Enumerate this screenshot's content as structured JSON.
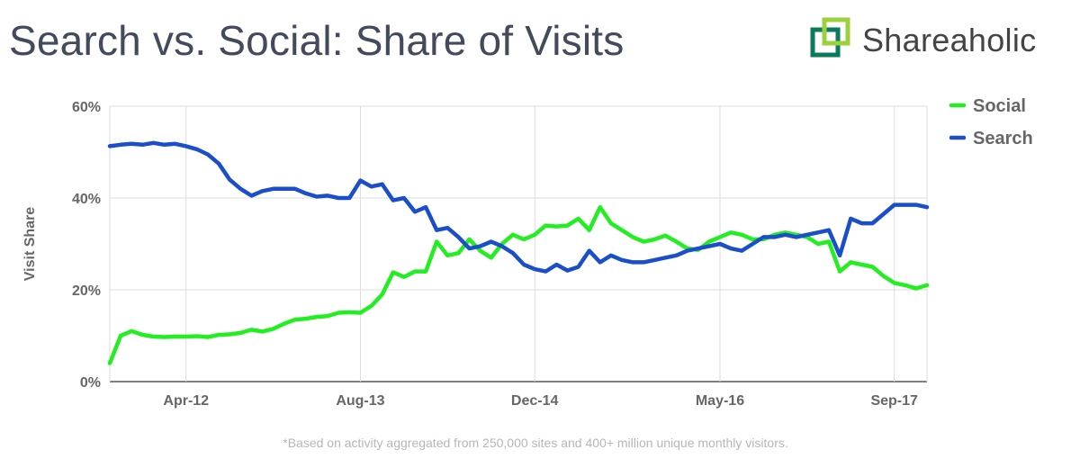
{
  "header": {
    "title": "Search vs. Social: Share of Visits",
    "logo": {
      "icon": "shareaholic-logo-icon",
      "text": "Shareaholic",
      "colors": [
        "#9bd23c",
        "#1f9a6b",
        "#0b7a5a"
      ]
    }
  },
  "footnote": "*Based on activity aggregated from 250,000 sites and 400+ million unique monthly visitors.",
  "chart_data": {
    "type": "line",
    "title": "Search vs. Social: Share of Visits",
    "xlabel": "",
    "ylabel": "Visit Share",
    "xlim": [
      "2011-09",
      "2017-12"
    ],
    "ylim": [
      0,
      60
    ],
    "yticks": [
      0,
      20,
      40,
      60
    ],
    "ytick_labels": [
      "0%",
      "20%",
      "40%",
      "60%"
    ],
    "xticks": [
      "2012-04",
      "2013-08",
      "2014-12",
      "2016-05",
      "2017-09"
    ],
    "xtick_labels": [
      "Apr-12",
      "Aug-13",
      "Dec-14",
      "May-16",
      "Sep-17"
    ],
    "grid": true,
    "legend_position": "right",
    "series": [
      {
        "name": "Social",
        "color": "#22ee22",
        "points": [
          [
            "2011-09",
            4
          ],
          [
            "2011-10",
            10
          ],
          [
            "2011-11",
            11
          ],
          [
            "2011-12",
            10.2
          ],
          [
            "2012-01",
            9.8
          ],
          [
            "2012-02",
            9.7
          ],
          [
            "2012-03",
            9.8
          ],
          [
            "2012-04",
            9.8
          ],
          [
            "2012-05",
            9.9
          ],
          [
            "2012-06",
            9.7
          ],
          [
            "2012-07",
            10.2
          ],
          [
            "2012-08",
            10.3
          ],
          [
            "2012-09",
            10.6
          ],
          [
            "2012-10",
            11.3
          ],
          [
            "2012-11",
            10.9
          ],
          [
            "2012-12",
            11.5
          ],
          [
            "2013-01",
            12.6
          ],
          [
            "2013-02",
            13.5
          ],
          [
            "2013-03",
            13.7
          ],
          [
            "2013-04",
            14.1
          ],
          [
            "2013-05",
            14.3
          ],
          [
            "2013-06",
            15.0
          ],
          [
            "2013-07",
            15.1
          ],
          [
            "2013-08",
            15.0
          ],
          [
            "2013-09",
            16.5
          ],
          [
            "2013-10",
            19.0
          ],
          [
            "2013-11",
            23.8
          ],
          [
            "2013-12",
            22.8
          ],
          [
            "2014-01",
            24.0
          ],
          [
            "2014-02",
            24.0
          ],
          [
            "2014-03",
            30.5
          ],
          [
            "2014-04",
            27.5
          ],
          [
            "2014-05",
            28.0
          ],
          [
            "2014-06",
            31.0
          ],
          [
            "2014-07",
            28.5
          ],
          [
            "2014-08",
            27.0
          ],
          [
            "2014-09",
            30.0
          ],
          [
            "2014-10",
            32.0
          ],
          [
            "2014-11",
            31.0
          ],
          [
            "2014-12",
            32.0
          ],
          [
            "2015-01",
            34.0
          ],
          [
            "2015-02",
            33.8
          ],
          [
            "2015-03",
            34.0
          ],
          [
            "2015-04",
            35.5
          ],
          [
            "2015-05",
            33.0
          ],
          [
            "2015-06",
            38.0
          ],
          [
            "2015-07",
            34.5
          ],
          [
            "2015-08",
            33.0
          ],
          [
            "2015-09",
            31.5
          ],
          [
            "2015-10",
            30.5
          ],
          [
            "2015-11",
            31.0
          ],
          [
            "2015-12",
            31.8
          ],
          [
            "2016-01",
            30.5
          ],
          [
            "2016-02",
            29.0
          ],
          [
            "2016-03",
            28.7
          ],
          [
            "2016-04",
            30.5
          ],
          [
            "2016-05",
            31.5
          ],
          [
            "2016-06",
            32.5
          ],
          [
            "2016-07",
            32.0
          ],
          [
            "2016-08",
            31.0
          ],
          [
            "2016-09",
            31.0
          ],
          [
            "2016-10",
            32.0
          ],
          [
            "2016-11",
            32.5
          ],
          [
            "2016-12",
            32.0
          ],
          [
            "2017-01",
            31.5
          ],
          [
            "2017-02",
            30.0
          ],
          [
            "2017-03",
            30.5
          ],
          [
            "2017-04",
            24.0
          ],
          [
            "2017-05",
            26.0
          ],
          [
            "2017-06",
            25.5
          ],
          [
            "2017-07",
            25.0
          ],
          [
            "2017-08",
            23.0
          ],
          [
            "2017-09",
            21.5
          ],
          [
            "2017-10",
            21.0
          ],
          [
            "2017-11",
            20.3
          ],
          [
            "2017-12",
            21.0
          ]
        ]
      },
      {
        "name": "Search",
        "color": "#1a4fc9",
        "points": [
          [
            "2011-09",
            51.3
          ],
          [
            "2011-10",
            51.6
          ],
          [
            "2011-11",
            51.8
          ],
          [
            "2011-12",
            51.6
          ],
          [
            "2012-01",
            52.0
          ],
          [
            "2012-02",
            51.6
          ],
          [
            "2012-03",
            51.8
          ],
          [
            "2012-04",
            51.3
          ],
          [
            "2012-05",
            50.6
          ],
          [
            "2012-06",
            49.5
          ],
          [
            "2012-07",
            47.5
          ],
          [
            "2012-08",
            44.0
          ],
          [
            "2012-09",
            42.0
          ],
          [
            "2012-10",
            40.5
          ],
          [
            "2012-11",
            41.5
          ],
          [
            "2012-12",
            42.0
          ],
          [
            "2013-01",
            42.0
          ],
          [
            "2013-02",
            42.0
          ],
          [
            "2013-03",
            41.0
          ],
          [
            "2013-04",
            40.3
          ],
          [
            "2013-05",
            40.5
          ],
          [
            "2013-06",
            40.0
          ],
          [
            "2013-07",
            40.0
          ],
          [
            "2013-08",
            43.8
          ],
          [
            "2013-09",
            42.5
          ],
          [
            "2013-10",
            43.0
          ],
          [
            "2013-11",
            39.5
          ],
          [
            "2013-12",
            40.0
          ],
          [
            "2014-01",
            37.0
          ],
          [
            "2014-02",
            38.0
          ],
          [
            "2014-03",
            33.0
          ],
          [
            "2014-04",
            33.5
          ],
          [
            "2014-05",
            31.5
          ],
          [
            "2014-06",
            29.0
          ],
          [
            "2014-07",
            29.5
          ],
          [
            "2014-08",
            30.5
          ],
          [
            "2014-09",
            29.5
          ],
          [
            "2014-10",
            28.0
          ],
          [
            "2014-11",
            25.5
          ],
          [
            "2014-12",
            24.5
          ],
          [
            "2015-01",
            24.0
          ],
          [
            "2015-02",
            25.5
          ],
          [
            "2015-03",
            24.2
          ],
          [
            "2015-04",
            25.0
          ],
          [
            "2015-05",
            28.5
          ],
          [
            "2015-06",
            26.0
          ],
          [
            "2015-07",
            27.5
          ],
          [
            "2015-08",
            26.5
          ],
          [
            "2015-09",
            26.0
          ],
          [
            "2015-10",
            26.0
          ],
          [
            "2015-11",
            26.5
          ],
          [
            "2015-12",
            27.0
          ],
          [
            "2016-01",
            27.5
          ],
          [
            "2016-02",
            28.5
          ],
          [
            "2016-03",
            29.0
          ],
          [
            "2016-04",
            29.5
          ],
          [
            "2016-05",
            30.0
          ],
          [
            "2016-06",
            29.0
          ],
          [
            "2016-07",
            28.5
          ],
          [
            "2016-08",
            30.0
          ],
          [
            "2016-09",
            31.5
          ],
          [
            "2016-10",
            31.5
          ],
          [
            "2016-11",
            32.0
          ],
          [
            "2016-12",
            31.5
          ],
          [
            "2017-01",
            32.0
          ],
          [
            "2017-02",
            32.5
          ],
          [
            "2017-03",
            33.0
          ],
          [
            "2017-04",
            27.5
          ],
          [
            "2017-05",
            35.5
          ],
          [
            "2017-06",
            34.5
          ],
          [
            "2017-07",
            34.5
          ],
          [
            "2017-08",
            36.5
          ],
          [
            "2017-09",
            38.5
          ],
          [
            "2017-10",
            38.5
          ],
          [
            "2017-11",
            38.5
          ],
          [
            "2017-12",
            38.0
          ]
        ]
      }
    ]
  }
}
